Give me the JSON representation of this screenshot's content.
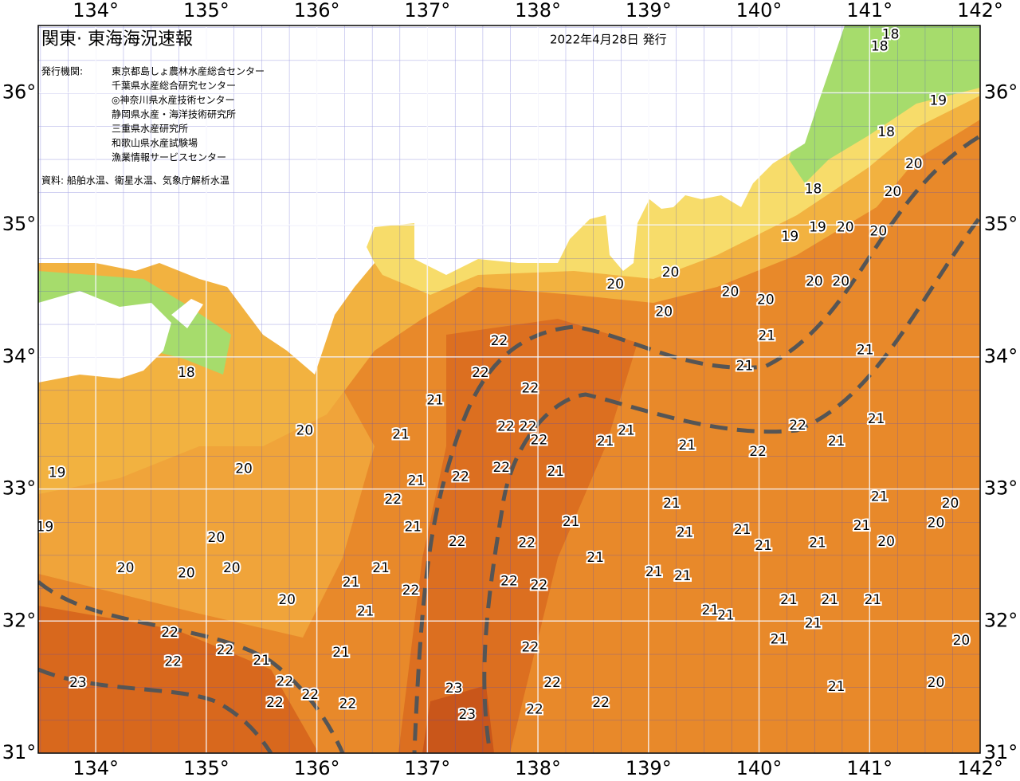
{
  "header": {
    "title": "関東· 東海海況速報",
    "date": "2022年4月28日 発行",
    "publisher_label": "発行機関:",
    "publishers": [
      "東京都島しょ農林水産総合センター",
      "千葉県水産総合研究センター",
      "◎神奈川県水産技術センター",
      "静岡県水産・海洋技術研究所",
      "三重県水産研究所",
      "和歌山県水産試験場",
      "漁業情報サービスセンター"
    ],
    "source": "資料: 船舶水温、衛星水温、気象庁解析水温"
  },
  "chart_data": {
    "type": "map",
    "xlim": [
      133.48,
      142
    ],
    "ylim": [
      31,
      36.51
    ],
    "xticks": [
      {
        "value": 134,
        "label": "134°"
      },
      {
        "value": 135,
        "label": "135°"
      },
      {
        "value": 136,
        "label": "136°"
      },
      {
        "value": 137,
        "label": "137°"
      },
      {
        "value": 138,
        "label": "138°"
      },
      {
        "value": 139,
        "label": "139°"
      },
      {
        "value": 140,
        "label": "140°"
      },
      {
        "value": 141,
        "label": "141°"
      },
      {
        "value": 142,
        "label": "142°"
      }
    ],
    "yticks": [
      {
        "value": 31,
        "label": "31°"
      },
      {
        "value": 32,
        "label": "32°"
      },
      {
        "value": 33,
        "label": "33°"
      },
      {
        "value": 34,
        "label": "34°"
      },
      {
        "value": 35,
        "label": "35°"
      },
      {
        "value": 36,
        "label": "36°"
      }
    ],
    "labels": {
      "x": [
        137.65,
        137.48,
        137.93,
        137.07,
        137.71,
        138.01,
        136.76,
        137.3,
        137.67,
        138.16,
        136.9,
        136.69,
        136.87,
        137.27,
        137.9,
        138.3,
        138.52,
        137.74,
        138.01,
        136.85,
        136.58,
        136.31,
        136.44,
        136.22,
        135.73,
        135.23,
        135.09,
        135.34,
        135.89,
        134.27,
        134.82,
        134.67,
        135.17,
        134.7,
        133.84,
        135.5,
        135.71,
        135.94,
        135.62,
        136.28,
        137.24,
        137.36,
        137.93,
        138.13,
        137.97,
        138.57,
        138.61,
        138.8,
        139.35,
        139.21,
        139.33,
        139.05,
        139.31,
        139.85,
        140.04,
        139.56,
        139.7,
        140.18,
        140.27,
        140.49,
        140.53,
        140.64,
        141.03,
        141.09,
        140.93,
        141.15,
        141.73,
        141.6,
        140.7,
        141.6,
        141.83,
        140.7,
        141.06,
        139.99,
        140.35,
        139.87,
        140.07,
        140.96,
        139.74,
        140.06,
        140.5,
        140.74,
        139.14,
        139.2,
        138.7,
        140.28,
        140.53,
        140.78,
        141.08,
        141.21,
        141.4,
        140.49,
        141.15,
        141.62,
        141.19,
        141.09,
        134.82,
        133.65,
        133.54,
        137.91
      ],
      "y": [
        34.12,
        33.88,
        33.76,
        33.67,
        33.47,
        33.37,
        33.41,
        33.09,
        33.16,
        33.13,
        33.06,
        32.92,
        32.71,
        32.6,
        32.59,
        32.75,
        32.48,
        32.3,
        32.27,
        32.23,
        32.4,
        32.29,
        32.07,
        31.76,
        32.16,
        32.4,
        32.63,
        33.15,
        33.44,
        32.4,
        32.36,
        31.91,
        31.78,
        31.69,
        31.53,
        31.7,
        31.54,
        31.44,
        31.38,
        31.37,
        31.49,
        31.29,
        31.8,
        31.53,
        31.33,
        31.38,
        33.36,
        33.44,
        33.33,
        32.89,
        32.67,
        32.37,
        32.34,
        32.69,
        32.57,
        32.08,
        32.04,
        31.86,
        32.16,
        31.98,
        32.59,
        32.16,
        32.16,
        32.94,
        32.72,
        32.6,
        32.89,
        32.74,
        31.5,
        31.53,
        31.85,
        33.36,
        33.53,
        33.28,
        33.48,
        33.93,
        34.16,
        34.05,
        34.49,
        34.43,
        34.57,
        34.57,
        34.34,
        34.64,
        34.55,
        34.91,
        34.98,
        34.98,
        34.95,
        35.25,
        35.46,
        35.27,
        35.7,
        35.94,
        36.44,
        36.35,
        33.88,
        33.12,
        32.71,
        33.47
      ],
      "values": [
        22,
        22,
        22,
        21,
        22,
        22,
        21,
        22,
        22,
        21,
        21,
        22,
        21,
        22,
        22,
        21,
        21,
        22,
        22,
        22,
        21,
        21,
        21,
        21,
        20,
        20,
        20,
        20,
        20,
        20,
        20,
        22,
        22,
        22,
        23,
        21,
        22,
        22,
        22,
        22,
        23,
        23,
        22,
        22,
        22,
        22,
        21,
        21,
        21,
        21,
        21,
        21,
        21,
        21,
        21,
        21,
        21,
        21,
        21,
        21,
        21,
        21,
        21,
        21,
        21,
        20,
        20,
        20,
        21,
        20,
        20,
        21,
        21,
        22,
        22,
        21,
        21,
        21,
        20,
        20,
        20,
        20,
        20,
        20,
        20,
        19,
        19,
        20,
        20,
        20,
        20,
        18,
        18,
        19,
        18,
        18,
        18,
        19,
        19,
        22
      ]
    }
  }
}
